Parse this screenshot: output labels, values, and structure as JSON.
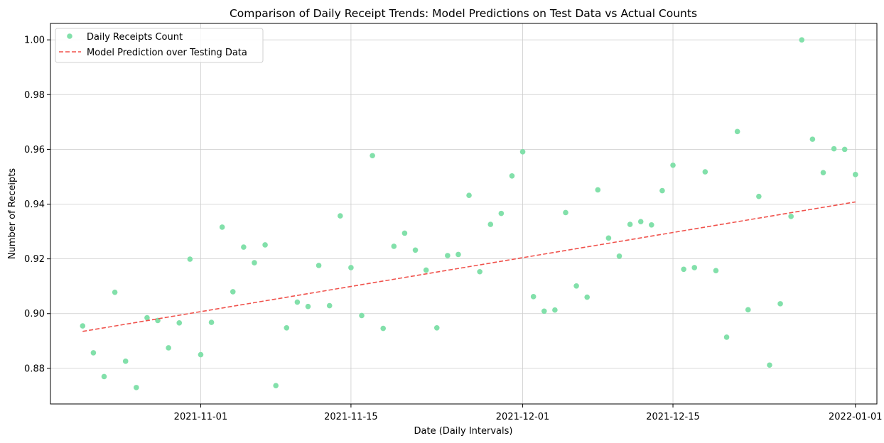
{
  "chart_data": {
    "type": "scatter",
    "title": "Comparison of Daily Receipt Trends: Model Predictions on Test Data vs Actual Counts",
    "xlabel": "Date (Daily Intervals)",
    "ylabel": "Number of Receipts",
    "xlim": [
      "2021-10-18",
      "2022-01-03"
    ],
    "ylim": [
      0.867,
      1.006
    ],
    "x_ticks": [
      "2021-11-01",
      "2021-11-15",
      "2021-12-01",
      "2021-12-15",
      "2022-01-01"
    ],
    "y_ticks": [
      0.88,
      0.9,
      0.92,
      0.94,
      0.96,
      0.98,
      1.0
    ],
    "grid": true,
    "legend_position": "top-left",
    "colors": {
      "scatter": "#82e0aa",
      "line": "#f0524c",
      "grid": "#cccccc"
    },
    "series": [
      {
        "name": "Daily Receipts Count",
        "kind": "scatter",
        "x": [
          "2021-10-21",
          "2021-10-22",
          "2021-10-23",
          "2021-10-24",
          "2021-10-25",
          "2021-10-26",
          "2021-10-27",
          "2021-10-28",
          "2021-10-29",
          "2021-10-30",
          "2021-10-31",
          "2021-11-01",
          "2021-11-02",
          "2021-11-03",
          "2021-11-04",
          "2021-11-05",
          "2021-11-06",
          "2021-11-07",
          "2021-11-08",
          "2021-11-09",
          "2021-11-10",
          "2021-11-11",
          "2021-11-12",
          "2021-11-13",
          "2021-11-14",
          "2021-11-15",
          "2021-11-16",
          "2021-11-17",
          "2021-11-18",
          "2021-11-19",
          "2021-11-20",
          "2021-11-21",
          "2021-11-22",
          "2021-11-23",
          "2021-11-24",
          "2021-11-25",
          "2021-11-26",
          "2021-11-27",
          "2021-11-28",
          "2021-11-29",
          "2021-11-30",
          "2021-12-01",
          "2021-12-02",
          "2021-12-03",
          "2021-12-04",
          "2021-12-05",
          "2021-12-06",
          "2021-12-07",
          "2021-12-08",
          "2021-12-09",
          "2021-12-10",
          "2021-12-11",
          "2021-12-12",
          "2021-12-13",
          "2021-12-14",
          "2021-12-15",
          "2021-12-16",
          "2021-12-17",
          "2021-12-18",
          "2021-12-19",
          "2021-12-20",
          "2021-12-21",
          "2021-12-22",
          "2021-12-23",
          "2021-12-24",
          "2021-12-25",
          "2021-12-26",
          "2021-12-27",
          "2021-12-28",
          "2021-12-29",
          "2021-12-30",
          "2021-12-31",
          "2022-01-01"
        ],
        "values": [
          0.8955,
          0.8857,
          0.877,
          0.9078,
          0.8826,
          0.873,
          0.8985,
          0.8975,
          0.8875,
          0.8966,
          0.9199,
          0.885,
          0.8968,
          0.9316,
          0.908,
          0.9243,
          0.9186,
          0.9251,
          0.8737,
          0.8948,
          0.9042,
          0.9026,
          0.9176,
          0.9029,
          0.9357,
          0.9168,
          0.8993,
          0.9577,
          0.8946,
          0.9246,
          0.9294,
          0.9232,
          0.9159,
          0.8948,
          0.9212,
          0.9216,
          0.9432,
          0.9153,
          0.9326,
          0.9366,
          0.9503,
          0.9591,
          0.9062,
          0.9009,
          0.9013,
          0.9369,
          0.9101,
          0.906,
          0.9452,
          0.9276,
          0.921,
          0.9326,
          0.9336,
          0.9324,
          0.9449,
          0.9542,
          0.9162,
          0.9168,
          0.9518,
          0.9157,
          0.8914,
          0.9665,
          0.9014,
          0.9428,
          0.8812,
          0.9036,
          0.9355,
          1.0,
          0.9637,
          0.9515,
          0.9602,
          0.96,
          0.9508
        ]
      },
      {
        "name": "Model Prediction over Testing Data",
        "kind": "line",
        "x": [
          "2021-10-21",
          "2022-01-01"
        ],
        "values": [
          0.8935,
          0.9408
        ]
      }
    ]
  }
}
